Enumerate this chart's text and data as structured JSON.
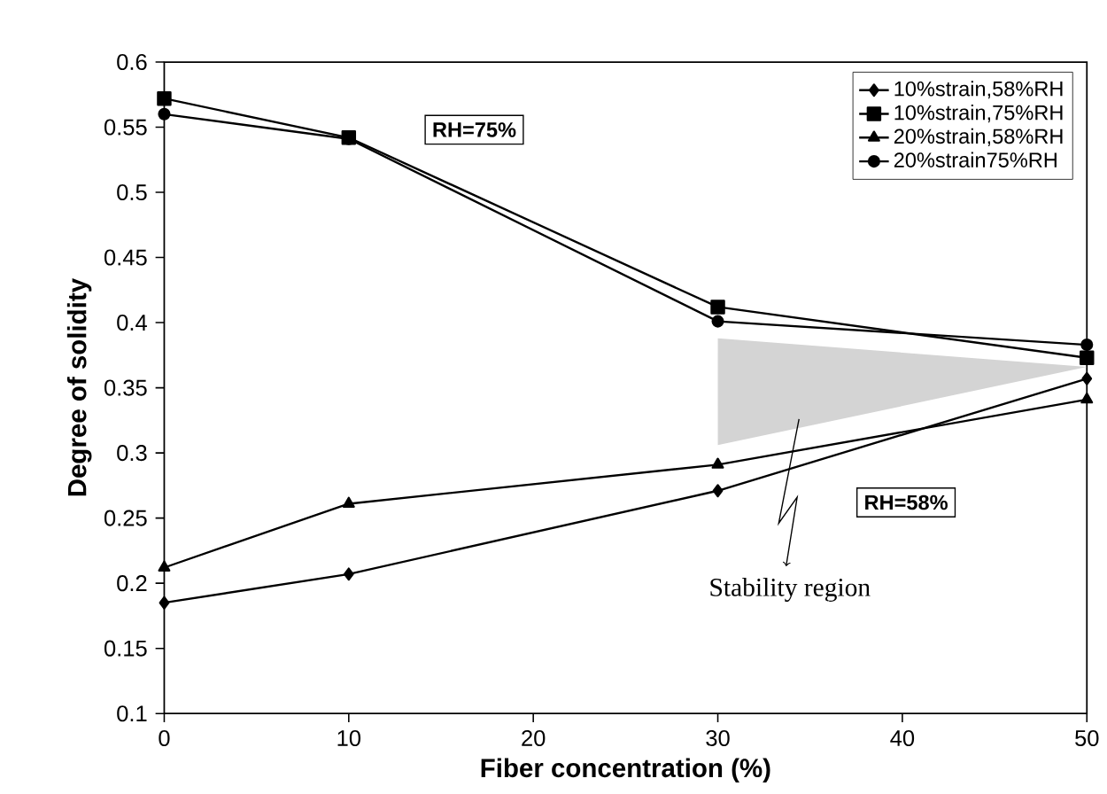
{
  "chart_data": {
    "type": "line",
    "xlabel": "Fiber concentration (%)",
    "ylabel": "Degree of solidity",
    "x": [
      0,
      10,
      30,
      50
    ],
    "xlim": [
      0,
      50
    ],
    "xticks": [
      0,
      10,
      20,
      30,
      40,
      50
    ],
    "ylim": [
      0.1,
      0.6
    ],
    "yticks": [
      0.1,
      0.15,
      0.2,
      0.25,
      0.3,
      0.35,
      0.4,
      0.45,
      0.5,
      0.55,
      0.6
    ],
    "legend": "top right",
    "series": [
      {
        "name": "10%strain,58%RH",
        "color": "#000000",
        "marker": "diamond",
        "values": [
          0.185,
          0.207,
          0.271,
          0.357
        ]
      },
      {
        "name": "10%strain,75%RH",
        "color": "#000000",
        "marker": "square",
        "values": [
          0.572,
          0.542,
          0.412,
          0.373
        ]
      },
      {
        "name": "20%strain,58%RH",
        "color": "#000000",
        "marker": "triangle",
        "values": [
          0.212,
          0.261,
          0.291,
          0.341
        ]
      },
      {
        "name": "20%strain75%RH",
        "color": "#000000",
        "marker": "circle",
        "values": [
          0.56,
          0.541,
          0.401,
          0.383
        ]
      }
    ],
    "annotations": [
      "RH=75%",
      "RH=58%",
      "Stability region"
    ]
  }
}
